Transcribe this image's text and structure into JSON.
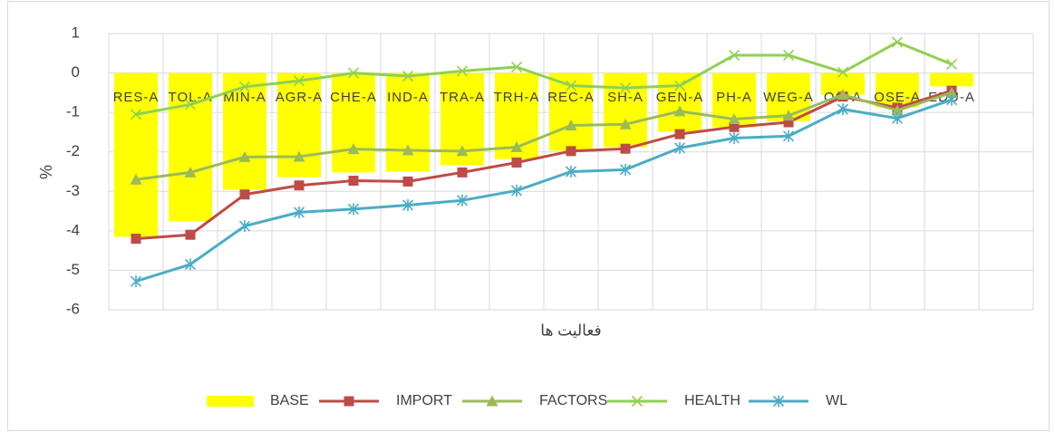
{
  "chart_data": {
    "type": "bar_line",
    "x_label": "فعاليت ها",
    "y_label": "%",
    "categories": [
      "RES-A",
      "TOL-A",
      "MIN-A",
      "AGR-A",
      "CHE-A",
      "IND-A",
      "TRA-A",
      "TRH-A",
      "REC-A",
      "SH-A",
      "GEN-A",
      "PH-A",
      "WEG-A",
      "OG-A",
      "OSE-A",
      "EDU-A",
      null
    ],
    "series": [
      {
        "name": "BASE",
        "kind": "bar",
        "color": "#ffff00",
        "values": [
          -4.15,
          -3.76,
          -2.96,
          -2.64,
          -2.52,
          -2.5,
          -2.34,
          -2.18,
          -1.97,
          -1.88,
          -1.49,
          -1.38,
          -1.22,
          -0.55,
          -0.87,
          -0.34,
          null
        ]
      },
      {
        "name": "IMPORT",
        "kind": "line",
        "marker": "square",
        "color": "#be4b48",
        "values": [
          -4.2,
          -4.1,
          -3.08,
          -2.85,
          -2.73,
          -2.75,
          -2.52,
          -2.27,
          -1.98,
          -1.92,
          -1.55,
          -1.37,
          -1.25,
          -0.6,
          -0.88,
          -0.45,
          null
        ]
      },
      {
        "name": "FACTORS",
        "kind": "line",
        "marker": "triangle",
        "color": "#9bbb59",
        "values": [
          -2.7,
          -2.52,
          -2.13,
          -2.12,
          -1.93,
          -1.96,
          -1.98,
          -1.88,
          -1.33,
          -1.3,
          -0.97,
          -1.17,
          -1.08,
          -0.55,
          -0.95,
          -0.5,
          null
        ]
      },
      {
        "name": "HEALTH",
        "kind": "line",
        "marker": "x",
        "color": "#8fd14f",
        "values": [
          -1.05,
          -0.8,
          -0.35,
          -0.2,
          0,
          -0.08,
          0.05,
          0.15,
          -0.32,
          -0.38,
          -0.32,
          0.45,
          0.45,
          0.02,
          0.78,
          0.22,
          null
        ]
      },
      {
        "name": "WL",
        "kind": "line",
        "marker": "star",
        "color": "#4bacc6",
        "values": [
          -5.28,
          -4.85,
          -3.88,
          -3.53,
          -3.45,
          -3.35,
          -3.23,
          -2.98,
          -2.5,
          -2.45,
          -1.9,
          -1.65,
          -1.6,
          -0.92,
          -1.15,
          -0.68,
          null
        ]
      }
    ],
    "ylim": [
      -6,
      1
    ],
    "yticks": [
      -6,
      -5,
      -4,
      -3,
      -2,
      -1,
      0,
      1
    ],
    "grid": true,
    "legend": "bottom"
  }
}
